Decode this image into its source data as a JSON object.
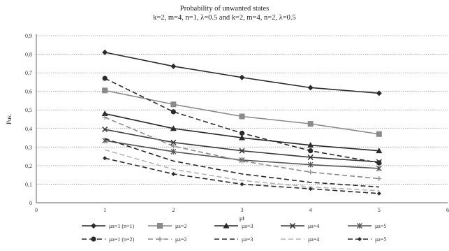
{
  "chart_data": {
    "type": "line",
    "title": "Probability of unwanted states",
    "subtitle": "k=2, m=4, n=1, λ=0.5 and k=2, m=4, n=2, λ=0.5",
    "xlabel": "μt",
    "ylabel": "Pus.",
    "xlim": [
      0,
      6
    ],
    "ylim": [
      0,
      0.9
    ],
    "xticks": [
      "0",
      "1",
      "2",
      "3",
      "4",
      "5",
      "6"
    ],
    "yticks": [
      "0",
      "0,1",
      "0,2",
      "0,3",
      "0,4",
      "0,5",
      "0,6",
      "0,7",
      "0,8",
      "0,9"
    ],
    "grid": "horizontal",
    "legend_position": "bottom",
    "x": [
      1,
      2,
      3,
      4,
      5
    ],
    "series": [
      {
        "name": "μa=1 (n=1)",
        "values": [
          0.81,
          0.735,
          0.675,
          0.62,
          0.59
        ],
        "color": "#2a2a2a",
        "dash": "solid",
        "marker": "diamond"
      },
      {
        "name": "μa=2",
        "values": [
          0.605,
          0.53,
          0.465,
          0.425,
          0.37
        ],
        "color": "#8a8a8a",
        "dash": "solid",
        "marker": "square"
      },
      {
        "name": "μa=3",
        "values": [
          0.48,
          0.4,
          0.35,
          0.31,
          0.28
        ],
        "color": "#2a2a2a",
        "dash": "solid",
        "marker": "triangle"
      },
      {
        "name": "μa=4",
        "values": [
          0.395,
          0.325,
          0.28,
          0.245,
          0.22
        ],
        "color": "#3a3a3a",
        "dash": "solid",
        "marker": "x"
      },
      {
        "name": "μa=5",
        "values": [
          0.335,
          0.275,
          0.23,
          0.205,
          0.185
        ],
        "color": "#555555",
        "dash": "solid",
        "marker": "star"
      },
      {
        "name": "μa=1 (n=2)",
        "values": [
          0.67,
          0.49,
          0.375,
          0.28,
          0.215
        ],
        "color": "#2a2a2a",
        "dash": "dashed",
        "marker": "circle"
      },
      {
        "name": "μa=2",
        "values": [
          0.46,
          0.305,
          0.225,
          0.165,
          0.13
        ],
        "color": "#8a8a8a",
        "dash": "dashed",
        "marker": "plus"
      },
      {
        "name": "μa=3",
        "values": [
          0.345,
          0.225,
          0.155,
          0.11,
          0.085
        ],
        "color": "#2a2a2a",
        "dash": "dashed",
        "marker": "none"
      },
      {
        "name": "μa=4",
        "values": [
          0.285,
          0.18,
          0.12,
          0.085,
          0.065
        ],
        "color": "#b4b4b4",
        "dash": "dashed",
        "marker": "none"
      },
      {
        "name": "μa=5",
        "values": [
          0.24,
          0.155,
          0.1,
          0.075,
          0.05
        ],
        "color": "#2a2a2a",
        "dash": "dashed",
        "marker": "diamond-small"
      }
    ]
  }
}
